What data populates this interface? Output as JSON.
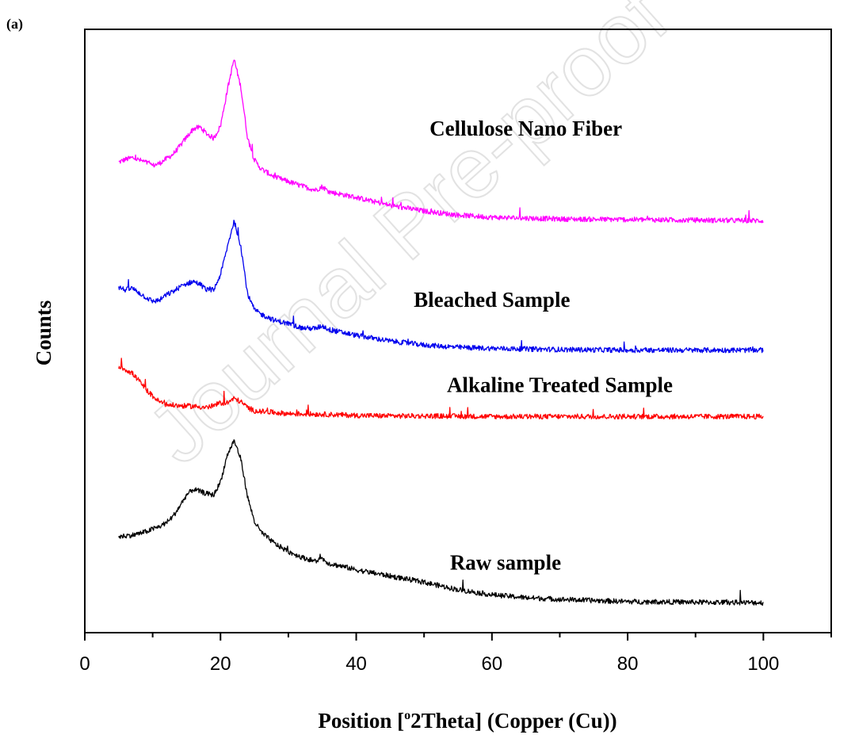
{
  "chart_data": {
    "type": "line",
    "panel_label": "(a)",
    "xlabel": "Position [°2Theta] (Copper (Cu))",
    "xlabel_parts": {
      "pre": "Position [",
      "sup": "o",
      "post": "2Theta] (Copper (Cu))"
    },
    "ylabel": "Counts",
    "xlim": [
      0,
      110
    ],
    "xticks": [
      0,
      20,
      40,
      60,
      80,
      100
    ],
    "xtick_labels": [
      "0",
      "20",
      "40",
      "60",
      "80",
      "100"
    ],
    "minor_xticks": [
      10,
      30,
      50,
      70,
      90,
      110
    ],
    "ylim": [
      0,
      100
    ],
    "y_axis_values_shown": false,
    "grid": false,
    "series": [
      {
        "name": "Cellulose Nano Fiber",
        "color": "#ff00ff",
        "x": [
          5,
          6,
          7,
          8,
          9,
          10,
          11,
          12,
          13,
          14,
          15,
          16,
          17,
          18,
          19,
          20,
          21,
          22,
          23,
          24,
          25,
          26,
          28,
          30,
          32,
          34,
          35,
          36,
          40,
          45,
          50,
          55,
          60,
          70,
          80,
          90,
          100
        ],
        "values": [
          79.8,
          80.3,
          80.6,
          80.2,
          79.8,
          79.2,
          79.6,
          80.4,
          81.2,
          82.6,
          84.2,
          85.7,
          86.0,
          84.8,
          84.0,
          86.2,
          92.5,
          98.0,
          93.0,
          84.0,
          80.2,
          78.6,
          77.2,
          76.4,
          75.6,
          74.9,
          75.5,
          74.6,
          73.6,
          72.2,
          71.2,
          70.5,
          70.1,
          69.8,
          69.7,
          69.6,
          69.5
        ]
      },
      {
        "name": "Bleached Sample",
        "color": "#0000ee",
        "x": [
          5,
          6,
          7,
          8,
          9,
          10,
          11,
          12,
          13,
          14,
          15,
          16,
          17,
          18,
          19,
          20,
          21,
          22,
          23,
          24,
          25,
          26,
          27,
          28,
          30,
          32,
          34,
          35,
          36,
          40,
          45,
          50,
          55,
          60,
          70,
          80,
          90,
          100
        ],
        "values": [
          57.8,
          57.3,
          57.6,
          56.8,
          56.0,
          55.3,
          55.5,
          56.4,
          57.0,
          57.8,
          58.4,
          58.8,
          58.3,
          57.3,
          57.3,
          60.0,
          64.8,
          69.5,
          65.0,
          56.5,
          53.8,
          53.0,
          52.5,
          51.9,
          51.4,
          50.6,
          50.5,
          51.0,
          50.3,
          49.3,
          48.3,
          47.6,
          47.2,
          47.0,
          46.8,
          46.7,
          46.7,
          46.7
        ]
      },
      {
        "name": "Alkaline Treated Sample",
        "color": "#ff0000",
        "x": [
          5,
          6,
          7,
          8,
          9,
          10,
          11,
          12,
          14,
          16,
          18,
          19,
          20,
          21,
          22,
          23,
          24,
          25,
          27,
          30,
          35,
          40,
          45,
          50,
          60,
          70,
          80,
          90,
          100
        ],
        "values": [
          43.8,
          43.3,
          42.6,
          41.3,
          39.8,
          38.6,
          37.6,
          37.1,
          36.9,
          36.8,
          36.6,
          36.9,
          37.4,
          37.4,
          38.2,
          37.6,
          36.6,
          36.0,
          35.8,
          35.5,
          35.4,
          35.2,
          35.1,
          35.1,
          35.0,
          35.0,
          35.0,
          35.0,
          35.0
        ]
      },
      {
        "name": "Raw sample",
        "color": "#000000",
        "x": [
          5,
          6,
          7,
          8,
          9,
          10,
          11,
          12,
          13,
          14,
          15,
          16,
          17,
          18,
          19,
          20,
          21,
          22,
          23,
          24,
          25,
          26,
          28,
          30,
          32,
          34,
          35,
          36,
          38,
          40,
          45,
          50,
          55,
          60,
          65,
          70,
          80,
          90,
          100
        ],
        "values": [
          13.8,
          14.0,
          14.1,
          14.4,
          14.7,
          15.2,
          15.6,
          16.3,
          17.4,
          19.2,
          21.2,
          22.2,
          21.8,
          21.4,
          21.2,
          23.5,
          28.2,
          30.8,
          27.5,
          20.8,
          16.5,
          14.6,
          12.6,
          11.2,
          10.2,
          9.5,
          10.0,
          9.1,
          8.6,
          8.0,
          6.9,
          5.8,
          4.5,
          3.6,
          3.1,
          2.8,
          2.4,
          2.3,
          2.2
        ]
      }
    ],
    "annotations": [
      {
        "text": "Cellulose Nano Fiber",
        "x": 65,
        "y": 84.5
      },
      {
        "text": "Bleached Sample",
        "x": 60,
        "y": 54.3
      },
      {
        "text": "Alkaline Treated Sample",
        "x": 70,
        "y": 39.3
      },
      {
        "text": "Raw sample",
        "x": 62,
        "y": 8.0
      }
    ],
    "watermark": "Journal Pre-proof"
  }
}
